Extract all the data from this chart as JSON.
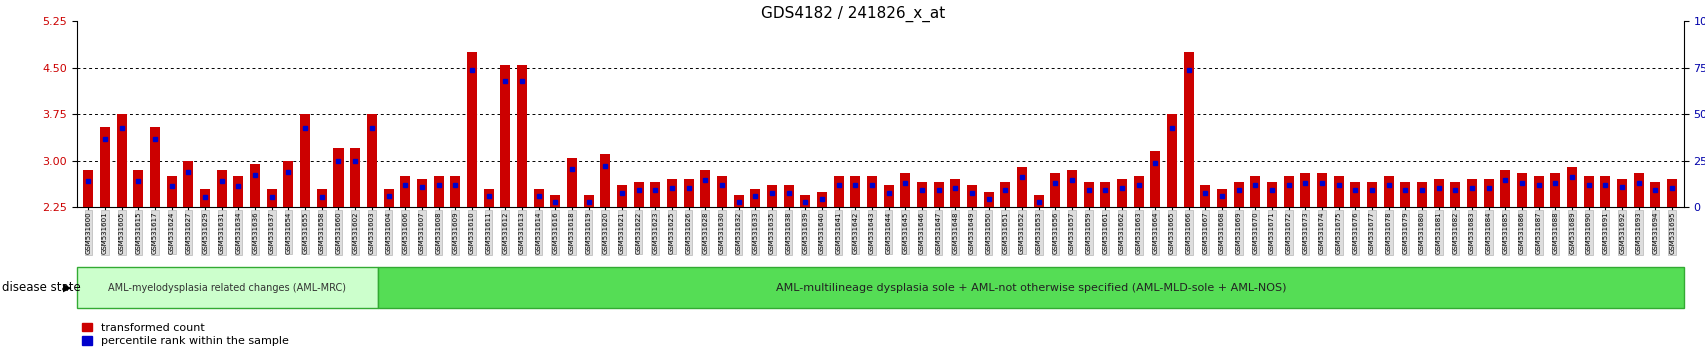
{
  "title": "GDS4182 / 241826_x_at",
  "samples": [
    "GSM531600",
    "GSM531601",
    "GSM531605",
    "GSM531615",
    "GSM531617",
    "GSM531624",
    "GSM531627",
    "GSM531629",
    "GSM531631",
    "GSM531634",
    "GSM531636",
    "GSM531637",
    "GSM531654",
    "GSM531655",
    "GSM531658",
    "GSM531660",
    "GSM531602",
    "GSM531603",
    "GSM531604",
    "GSM531606",
    "GSM531607",
    "GSM531608",
    "GSM531609",
    "GSM531610",
    "GSM531611",
    "GSM531612",
    "GSM531613",
    "GSM531614",
    "GSM531616",
    "GSM531618",
    "GSM531619",
    "GSM531620",
    "GSM531621",
    "GSM531622",
    "GSM531623",
    "GSM531625",
    "GSM531626",
    "GSM531628",
    "GSM531630",
    "GSM531632",
    "GSM531633",
    "GSM531635",
    "GSM531638",
    "GSM531639",
    "GSM531640",
    "GSM531641",
    "GSM531642",
    "GSM531643",
    "GSM531644",
    "GSM531645",
    "GSM531646",
    "GSM531647",
    "GSM531648",
    "GSM531649",
    "GSM531650",
    "GSM531651",
    "GSM531652",
    "GSM531653",
    "GSM531656",
    "GSM531657",
    "GSM531659",
    "GSM531661",
    "GSM531662",
    "GSM531663",
    "GSM531664",
    "GSM531665",
    "GSM531666",
    "GSM531667",
    "GSM531668",
    "GSM531669",
    "GSM531670",
    "GSM531671",
    "GSM531672",
    "GSM531673",
    "GSM531674",
    "GSM531675",
    "GSM531676",
    "GSM531677",
    "GSM531678",
    "GSM531679",
    "GSM531680",
    "GSM531681",
    "GSM531682",
    "GSM531683",
    "GSM531684",
    "GSM531685",
    "GSM531686",
    "GSM531687",
    "GSM531688",
    "GSM531689",
    "GSM531690",
    "GSM531691",
    "GSM531692",
    "GSM531693",
    "GSM531694",
    "GSM531695"
  ],
  "red_values": [
    2.85,
    3.55,
    3.75,
    2.85,
    3.55,
    2.75,
    3.0,
    2.55,
    2.85,
    2.75,
    2.95,
    2.55,
    3.0,
    3.75,
    2.55,
    3.2,
    3.2,
    3.75,
    2.55,
    2.75,
    2.7,
    2.75,
    2.75,
    4.75,
    2.55,
    4.55,
    4.55,
    2.55,
    2.45,
    3.05,
    2.45,
    3.1,
    2.6,
    2.65,
    2.65,
    2.7,
    2.7,
    2.85,
    2.75,
    2.45,
    2.55,
    2.6,
    2.6,
    2.45,
    2.5,
    2.75,
    2.75,
    2.75,
    2.6,
    2.8,
    2.65,
    2.65,
    2.7,
    2.6,
    2.5,
    2.65,
    2.9,
    2.45,
    2.8,
    2.85,
    2.65,
    2.65,
    2.7,
    2.75,
    3.15,
    3.75,
    4.75,
    2.6,
    2.55,
    2.65,
    2.75,
    2.65,
    2.75,
    2.8,
    2.8,
    2.75,
    2.65,
    2.65,
    2.75,
    2.65,
    2.65,
    2.7,
    2.65,
    2.7,
    2.7,
    2.85,
    2.8,
    2.75,
    2.8,
    2.9,
    2.75,
    2.75,
    2.7,
    2.8,
    2.65,
    2.7
  ],
  "blue_offsets": [
    -0.18,
    -0.2,
    -0.22,
    -0.18,
    -0.2,
    -0.16,
    -0.18,
    -0.14,
    -0.18,
    -0.16,
    -0.18,
    -0.14,
    -0.18,
    -0.22,
    -0.14,
    -0.2,
    -0.2,
    -0.22,
    -0.12,
    -0.14,
    -0.13,
    -0.14,
    -0.14,
    -0.28,
    -0.12,
    -0.26,
    -0.26,
    -0.12,
    -0.11,
    -0.18,
    -0.11,
    -0.19,
    -0.13,
    -0.13,
    -0.13,
    -0.14,
    -0.14,
    -0.17,
    -0.14,
    -0.11,
    -0.12,
    -0.13,
    -0.13,
    -0.11,
    -0.12,
    -0.14,
    -0.14,
    -0.14,
    -0.13,
    -0.16,
    -0.13,
    -0.13,
    -0.14,
    -0.13,
    -0.12,
    -0.13,
    -0.17,
    -0.11,
    -0.16,
    -0.17,
    -0.13,
    -0.13,
    -0.14,
    -0.14,
    -0.19,
    -0.22,
    -0.28,
    -0.13,
    -0.12,
    -0.13,
    -0.14,
    -0.13,
    -0.14,
    -0.16,
    -0.16,
    -0.14,
    -0.13,
    -0.13,
    -0.14,
    -0.13,
    -0.13,
    -0.14,
    -0.13,
    -0.14,
    -0.14,
    -0.17,
    -0.16,
    -0.14,
    -0.16,
    -0.17,
    -0.14,
    -0.14,
    -0.13,
    -0.16,
    -0.13,
    -0.14
  ],
  "group1_count": 18,
  "group1_label": "AML-myelodysplasia related changes (AML-MRC)",
  "group2_label": "AML-multilineage dysplasia sole + AML-not otherwise specified (AML-MLD-sole + AML-NOS)",
  "ylim_left": [
    2.25,
    5.25
  ],
  "ylim_right": [
    0,
    100
  ],
  "yticks_left": [
    2.25,
    3.0,
    3.75,
    4.5,
    5.25
  ],
  "yticks_right": [
    0,
    25,
    50,
    75,
    100
  ],
  "grid_values": [
    3.0,
    3.75,
    4.5
  ],
  "bar_color": "#cc0000",
  "dot_color": "#0000cc",
  "bg_color": "#ffffff",
  "tick_label_color": "#cc0000",
  "right_tick_color": "#0000aa",
  "group1_bg": "#ccffcc",
  "group2_bg": "#55dd55",
  "base_value": 2.25
}
